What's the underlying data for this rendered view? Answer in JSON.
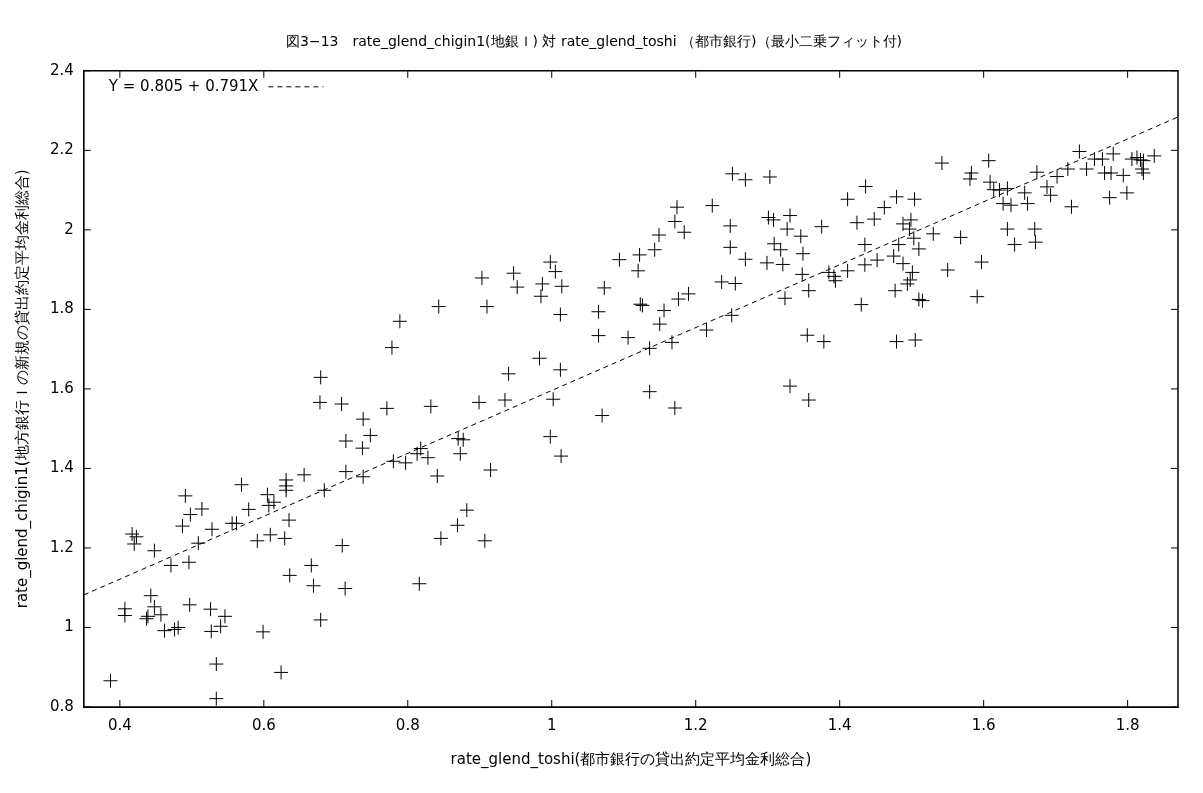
{
  "chart_data": {
    "type": "scatter",
    "title": "図3−13　rate_glend_chigin1(地銀Ｉ) 対 rate_glend_toshi （都市銀行)（最小二乗フィット付)",
    "xlabel": "rate_glend_toshi(都市銀行の貸出約定平均金利総合)",
    "ylabel": "rate_glend_chigin1(地方銀行Ｉの新規の貸出約定平均金利総合)",
    "xlim": [
      0.35,
      1.87
    ],
    "ylim": [
      0.8,
      2.4
    ],
    "xticks": [
      0.4,
      0.6,
      0.8,
      1,
      1.2,
      1.4,
      1.6,
      1.8
    ],
    "yticks": [
      0.8,
      1,
      1.2,
      1.4,
      1.6,
      1.8,
      2,
      2.2,
      2.4
    ],
    "legend": "top left",
    "marker": "cross",
    "series": [
      {
        "color": "#000000",
        "x": [
          0.843,
          0.789,
          0.778,
          0.679,
          0.903,
          0.947,
          0.952,
          0.91,
          0.987,
          0.998,
          1.005,
          1.014,
          0.985,
          1.012,
          1.065,
          1.073,
          1.065,
          1.106,
          1.094,
          1.122,
          1.12,
          1.123,
          1.126,
          1.143,
          1.149,
          1.171,
          1.174,
          1.184,
          1.156,
          1.176,
          1.19,
          1.15,
          1.136,
          1.167,
          0.983,
          0.94,
          1.012,
          1.223,
          1.251,
          1.269,
          1.303,
          1.248,
          1.301,
          1.308,
          1.331,
          1.327,
          1.346,
          1.375,
          1.309,
          1.318,
          1.321,
          1.299,
          1.349,
          1.269,
          1.248,
          1.348,
          1.385,
          1.236,
          1.255,
          1.357,
          1.324,
          1.25,
          1.215,
          1.355,
          1.378,
          1.331,
          1.411,
          1.436,
          1.462,
          1.479,
          1.504,
          1.424,
          1.448,
          1.488,
          1.499,
          1.497,
          1.53,
          1.568,
          1.542,
          1.607,
          1.583,
          1.581,
          1.609,
          1.614,
          1.622,
          1.633,
          1.627,
          1.638,
          1.661,
          1.657,
          1.674,
          1.688,
          1.693,
          1.702,
          1.717,
          1.722,
          1.733,
          1.743,
          1.754,
          1.765,
          1.78,
          1.768,
          1.777,
          1.794,
          1.775,
          1.799,
          1.806,
          1.813,
          1.818,
          1.822,
          1.82,
          1.822,
          1.837,
          1.435,
          1.482,
          1.503,
          1.51,
          1.475,
          1.452,
          1.435,
          1.411,
          1.488,
          1.501,
          1.392,
          1.394,
          1.498,
          1.477,
          1.494,
          1.51,
          1.515,
          1.43,
          1.55,
          1.597,
          1.633,
          1.671,
          1.643,
          1.672,
          1.591,
          1.479,
          1.505,
          0.678,
          0.708,
          0.771,
          0.832,
          0.738,
          0.714,
          0.748,
          0.737,
          0.818,
          0.813,
          0.828,
          0.78,
          0.797,
          0.841,
          0.714,
          0.738,
          0.656,
          0.684,
          0.614,
          0.631,
          0.631,
          0.631,
          0.605,
          0.607,
          0.569,
          0.579,
          0.491,
          0.498,
          0.514,
          0.487,
          0.528,
          0.556,
          0.562,
          0.635,
          0.509,
          0.417,
          0.423,
          0.42,
          0.448,
          0.471,
          0.496,
          0.591,
          0.609,
          0.629,
          0.709,
          0.846,
          0.636,
          0.666,
          0.669,
          0.713,
          0.816,
          0.679,
          0.443,
          0.448,
          0.407,
          0.407,
          0.439,
          0.437,
          0.457,
          0.462,
          0.476,
          0.481,
          0.497,
          0.526,
          0.527,
          0.54,
          0.546,
          0.599,
          0.534,
          0.624,
          0.387,
          0.534,
          0.899,
          0.935,
          1.002,
          1.136,
          1.07,
          1.171,
          1.357,
          0.877,
          0.87,
          0.873,
          0.998,
          1.013,
          0.915,
          0.882,
          0.869,
          0.907
        ],
        "values": [
          1.807,
          1.77,
          1.704,
          1.629,
          1.879,
          1.891,
          1.856,
          1.807,
          1.864,
          1.919,
          1.895,
          1.858,
          1.833,
          1.787,
          1.794,
          1.854,
          1.734,
          1.729,
          1.925,
          1.937,
          1.897,
          1.813,
          1.81,
          1.95,
          1.987,
          2.021,
          2.057,
          1.994,
          1.797,
          1.826,
          1.839,
          1.763,
          1.702,
          1.717,
          1.677,
          1.638,
          1.648,
          2.061,
          2.141,
          2.126,
          2.133,
          2.01,
          2.031,
          2.025,
          2.036,
          2.002,
          1.984,
          2.008,
          1.965,
          1.95,
          1.913,
          1.917,
          1.94,
          1.926,
          1.956,
          1.888,
          1.893,
          1.869,
          1.865,
          1.847,
          1.828,
          1.785,
          1.748,
          1.735,
          1.719,
          1.607,
          2.077,
          2.109,
          2.056,
          2.083,
          2.077,
          2.018,
          2.027,
          2.015,
          2.025,
          2.002,
          1.99,
          1.981,
          2.168,
          2.174,
          2.143,
          2.128,
          2.12,
          2.101,
          2.1,
          2.104,
          2.066,
          2.062,
          2.066,
          2.093,
          2.145,
          2.108,
          2.087,
          2.134,
          2.153,
          2.058,
          2.197,
          2.153,
          2.178,
          2.178,
          2.191,
          2.143,
          2.143,
          2.137,
          2.081,
          2.093,
          2.178,
          2.182,
          2.176,
          2.174,
          2.153,
          2.143,
          2.186,
          1.963,
          1.963,
          1.979,
          1.952,
          1.934,
          1.924,
          1.912,
          1.897,
          1.915,
          1.893,
          1.883,
          1.872,
          1.874,
          1.847,
          1.864,
          1.825,
          1.822,
          1.812,
          1.899,
          1.919,
          2.002,
          2.002,
          1.963,
          1.969,
          1.832,
          1.719,
          1.723,
          1.566,
          1.562,
          1.551,
          1.556,
          1.524,
          1.469,
          1.483,
          1.451,
          1.45,
          1.437,
          1.427,
          1.418,
          1.414,
          1.381,
          1.392,
          1.379,
          1.384,
          1.345,
          1.315,
          1.371,
          1.356,
          1.345,
          1.334,
          1.307,
          1.359,
          1.297,
          1.331,
          1.284,
          1.298,
          1.255,
          1.247,
          1.262,
          1.262,
          1.27,
          1.212,
          1.235,
          1.228,
          1.21,
          1.193,
          1.156,
          1.164,
          1.218,
          1.233,
          1.224,
          1.206,
          1.224,
          1.131,
          1.156,
          1.105,
          1.098,
          1.11,
          1.019,
          1.08,
          1.052,
          1.047,
          1.03,
          1.028,
          1.022,
          1.032,
          0.992,
          0.995,
          1.0,
          1.057,
          1.046,
          0.99,
          1.003,
          1.028,
          0.989,
          0.908,
          0.887,
          0.866,
          0.821,
          1.566,
          1.572,
          1.574,
          1.593,
          1.533,
          1.552,
          1.572,
          1.472,
          1.475,
          1.437,
          1.48,
          1.431,
          1.396,
          1.295,
          1.257,
          1.218
        ]
      },
      {
        "name": "Y = 0.805 + 0.791X",
        "type": "line",
        "color": "#000000",
        "line_style": "dashed",
        "marker": "none",
        "x": [
          0.35,
          1.87
        ],
        "values": [
          1.082,
          2.284
        ]
      }
    ]
  }
}
